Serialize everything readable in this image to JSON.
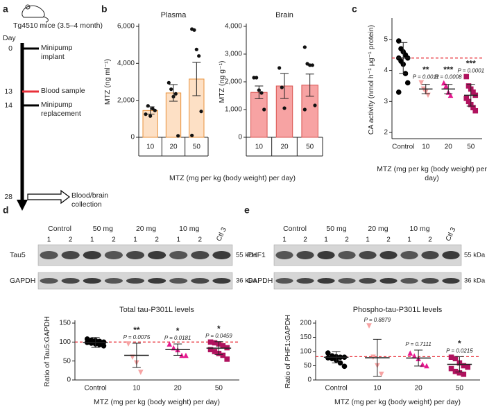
{
  "panel_labels": [
    "a",
    "b",
    "c",
    "d",
    "e"
  ],
  "panel_a": {
    "title": "Tg4510 mice (3.5–4 month)",
    "axis_label": "Day",
    "events": [
      {
        "day": 0,
        "label": "Minipump implant",
        "color": "#000000"
      },
      {
        "day": 13,
        "label": "Blood sample",
        "color": "#e8303a"
      },
      {
        "day": 14,
        "label": "Minipump replacement",
        "color": "#000000"
      },
      {
        "day": 28,
        "label": "Blood/brain collection",
        "color": "#000000"
      }
    ]
  },
  "blots": [
    {
      "groups": [
        "Control",
        "50 mg",
        "20 mg",
        "10 mg"
      ],
      "lanes": [
        "1",
        "2"
      ],
      "extra_lane": "Ctl 3",
      "rows": [
        {
          "label": "Tau5",
          "kda": "55 kDa"
        },
        {
          "label": "GAPDH",
          "kda": "36 kDa"
        }
      ]
    },
    {
      "groups": [
        "Control",
        "50 mg",
        "20 mg",
        "10 mg"
      ],
      "lanes": [
        "1",
        "2"
      ],
      "extra_lane": "Ctl 3",
      "rows": [
        {
          "label": "PHF1",
          "kda": "55 kDa"
        },
        {
          "label": "GAPDH",
          "kda": "36 kDa"
        }
      ]
    }
  ],
  "chart_data": [
    {
      "type": "bar",
      "title": "Plasma",
      "y_label": "MTZ (ng ml⁻¹)",
      "x_label": "MTZ (mg per kg (body weight) per day)",
      "categories": [
        "10",
        "20",
        "50"
      ],
      "color": "#fde0c5",
      "edge_color": "#e8913a",
      "category_box": true,
      "ylim": [
        0,
        6000
      ],
      "yticks": [
        0,
        {
          "value": 2000,
          "label": "2,000"
        },
        {
          "value": 4000,
          "label": "4,000"
        },
        {
          "value": 6000,
          "label": "6,000"
        }
      ],
      "groups": [
        {
          "mean": 1450,
          "error": 200,
          "points": [
            1250,
            1700,
            1150,
            1550,
            1450
          ]
        },
        {
          "mean": 2400,
          "error": 450,
          "points": [
            2950,
            2600,
            2200,
            2350,
            80
          ]
        },
        {
          "mean": 3150,
          "error": 900,
          "points": [
            5850,
            5800,
            4750,
            4400,
            1400,
            100
          ]
        }
      ]
    },
    {
      "type": "bar",
      "title": "Brain",
      "y_label": "MTZ (ng g⁻¹)",
      "categories": [
        "10",
        "20",
        "50"
      ],
      "color": "#f7a3a3",
      "edge_color": "#d9534f",
      "category_box": true,
      "ylim": [
        0,
        4000
      ],
      "yticks": [
        0,
        {
          "value": 1000,
          "label": "1,000"
        },
        {
          "value": 2000,
          "label": "2,000"
        },
        {
          "value": 3000,
          "label": "3,000"
        },
        {
          "value": 4000,
          "label": "4,000"
        }
      ],
      "groups": [
        {
          "mean": 1620,
          "error": 230,
          "points": [
            2150,
            2150,
            1700,
            1600,
            1000
          ]
        },
        {
          "mean": 1850,
          "error": 450,
          "points": [
            2500,
            1800,
            1050
          ]
        },
        {
          "mean": 1880,
          "error": 400,
          "points": [
            3250,
            2650,
            2600,
            2600,
            1150,
            1000
          ]
        }
      ]
    },
    {
      "type": "dot",
      "y_label": "CA activity (nmol h⁻¹ µg⁻¹ protein)",
      "x_label": "MTZ (mg per kg (body weight) per day)",
      "categories": [
        "Control",
        "10",
        "20",
        "50"
      ],
      "ylim": [
        1.8,
        5.6
      ],
      "yticks": [
        2,
        3,
        4,
        5
      ],
      "reference_line": 4.4,
      "reference_color": "#e8303a",
      "stars": [
        null,
        "**",
        "***",
        "***"
      ],
      "p_values": [
        null,
        "P = 0.0011",
        "P = 0.0008",
        "P = 0.0001"
      ],
      "groups": [
        {
          "color": "#000000",
          "marker": "circle",
          "mean": 4.4,
          "error": 0.5,
          "points": [
            4.95,
            4.7,
            4.6,
            4.5,
            4.4,
            4.4,
            4.3,
            4.2,
            3.9,
            3.6,
            3.3
          ]
        },
        {
          "color": "#f7a3a3",
          "marker": "triangle-down",
          "mean": 3.4,
          "error": 0.15,
          "points": [
            3.6,
            3.4,
            3.3,
            3.2
          ]
        },
        {
          "color": "#e6198f",
          "marker": "triangle",
          "mean": 3.4,
          "error": 0.15,
          "points": [
            3.6,
            3.5,
            3.3,
            3.2
          ]
        },
        {
          "color": "#b0125e",
          "marker": "square",
          "mean": 3.2,
          "error": 0.35,
          "points": [
            3.8,
            3.5,
            3.4,
            3.3,
            3.2,
            3.1,
            3.0,
            2.9,
            2.8,
            2.7
          ]
        }
      ]
    },
    {
      "type": "dot",
      "title": "Total tau-P301L levels",
      "y_label": "Ratio of Tau5:GAPDH",
      "x_label": "MTZ (mg per kg (body weight) per day)",
      "categories": [
        "Control",
        "10",
        "20",
        "50"
      ],
      "ylim": [
        0,
        150
      ],
      "yticks": [
        0,
        50,
        100,
        150
      ],
      "reference_line": 100,
      "reference_color": "#e8303a",
      "stars": [
        null,
        "**",
        "*",
        "*"
      ],
      "p_values": [
        null,
        "P = 0.0075",
        "P = 0.0181",
        "P = 0.0459"
      ],
      "groups": [
        {
          "color": "#000000",
          "marker": "circle",
          "mean": 99,
          "error": 13,
          "points": [
            108,
            105,
            104,
            102,
            100,
            99,
            97,
            95,
            93,
            90
          ]
        },
        {
          "color": "#f7a3a3",
          "marker": "triangle-down",
          "mean": 65,
          "error": 32,
          "points": [
            95,
            60,
            45,
            20
          ]
        },
        {
          "color": "#e6198f",
          "marker": "triangle",
          "mean": 80,
          "error": 15,
          "points": [
            95,
            85,
            80,
            65,
            65
          ]
        },
        {
          "color": "#b0125e",
          "marker": "square",
          "mean": 84,
          "error": 17,
          "points": [
            100,
            98,
            95,
            90,
            85,
            80,
            75,
            70,
            65,
            55
          ]
        }
      ]
    },
    {
      "type": "dot",
      "title": "Phospho-tau-P301L levels",
      "y_label": "Ratio of PHF1:GAPDH",
      "x_label": "MTZ (mg per kg (body weight) per day)",
      "categories": [
        "Control",
        "10",
        "20",
        "50"
      ],
      "ylim": [
        0,
        200
      ],
      "yticks": [
        0,
        50,
        100,
        150,
        200
      ],
      "reference_line": 82,
      "reference_color": "#e8303a",
      "stars": [
        null,
        null,
        null,
        "*"
      ],
      "p_values": [
        null,
        "P = 0.8879",
        "P = 0.7111",
        "P = 0.0215"
      ],
      "groups": [
        {
          "color": "#000000",
          "marker": "circle",
          "mean": 80,
          "error": 20,
          "points": [
            95,
            85,
            82,
            80,
            80,
            78,
            75,
            70,
            60,
            48
          ]
        },
        {
          "color": "#f7a3a3",
          "marker": "triangle-down",
          "mean": 78,
          "error": 65,
          "points": [
            190,
            80,
            50,
            20
          ]
        },
        {
          "color": "#e6198f",
          "marker": "triangle",
          "mean": 77,
          "error": 28,
          "points": [
            95,
            85,
            75,
            55,
            50
          ]
        },
        {
          "color": "#b0125e",
          "marker": "square",
          "mean": 55,
          "error": 27,
          "points": [
            80,
            75,
            60,
            50,
            45,
            40,
            30,
            25,
            20
          ]
        }
      ]
    }
  ]
}
